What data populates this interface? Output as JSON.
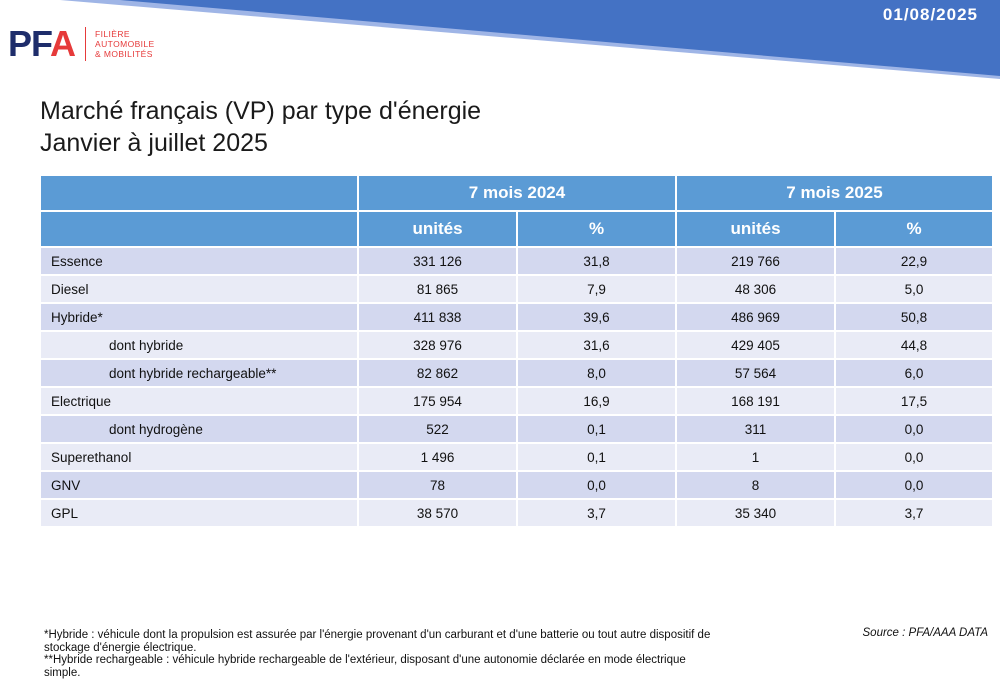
{
  "header": {
    "date": "01/08/2025",
    "logo": {
      "mark_p": "P",
      "mark_f": "F",
      "mark_a": "A",
      "line1": "FILIÈRE",
      "line2": "AUTOMOBILE",
      "line3": "& MOBILITÉS"
    },
    "colors": {
      "banner": "#4472c4",
      "banner_shadow": "#6f8fd6",
      "brand_navy": "#1e2d6b",
      "brand_red": "#e63a3a"
    }
  },
  "title": {
    "line1": "Marché français (VP) par type d'énergie",
    "line2": "Janvier à juillet 2025"
  },
  "table": {
    "period_headers": [
      "7 mois 2024",
      "7 mois 2025"
    ],
    "sub_headers": [
      "unités",
      "%",
      "unités",
      "%"
    ],
    "rows": [
      {
        "label": "Essence",
        "indent": false,
        "values": [
          "331 126",
          "31,8",
          "219 766",
          "22,9"
        ]
      },
      {
        "label": "Diesel",
        "indent": false,
        "values": [
          "81 865",
          "7,9",
          "48 306",
          "5,0"
        ]
      },
      {
        "label": "Hybride*",
        "indent": false,
        "values": [
          "411 838",
          "39,6",
          "486 969",
          "50,8"
        ]
      },
      {
        "label": "dont hybride",
        "indent": true,
        "values": [
          "328 976",
          "31,6",
          "429 405",
          "44,8"
        ]
      },
      {
        "label": "dont hybride rechargeable**",
        "indent": true,
        "values": [
          "82 862",
          "8,0",
          "57 564",
          "6,0"
        ]
      },
      {
        "label": "Electrique",
        "indent": false,
        "values": [
          "175 954",
          "16,9",
          "168 191",
          "17,5"
        ]
      },
      {
        "label": "dont hydrogène",
        "indent": true,
        "values": [
          "522",
          "0,1",
          "311",
          "0,0"
        ]
      },
      {
        "label": "Superethanol",
        "indent": false,
        "values": [
          "1 496",
          "0,1",
          "1",
          "0,0"
        ]
      },
      {
        "label": "GNV",
        "indent": false,
        "values": [
          "78",
          "0,0",
          "8",
          "0,0"
        ]
      },
      {
        "label": "GPL",
        "indent": false,
        "values": [
          "38 570",
          "3,7",
          "35 340",
          "3,7"
        ]
      }
    ],
    "colors": {
      "header": "#5b9bd5",
      "row_odd": "#d3d8ef",
      "row_even": "#e9ebf6"
    }
  },
  "footnotes": {
    "hybride": "*Hybride : véhicule dont la propulsion est assurée par l'énergie provenant d'un carburant et d'une batterie ou tout autre dispositif de stockage d'énergie électrique.",
    "rechargeable": "**Hybride rechargeable : véhicule hybride rechargeable de l'extérieur, disposant d'une autonomie déclarée en mode électrique simple."
  },
  "source": "Source : PFA/AAA DATA"
}
